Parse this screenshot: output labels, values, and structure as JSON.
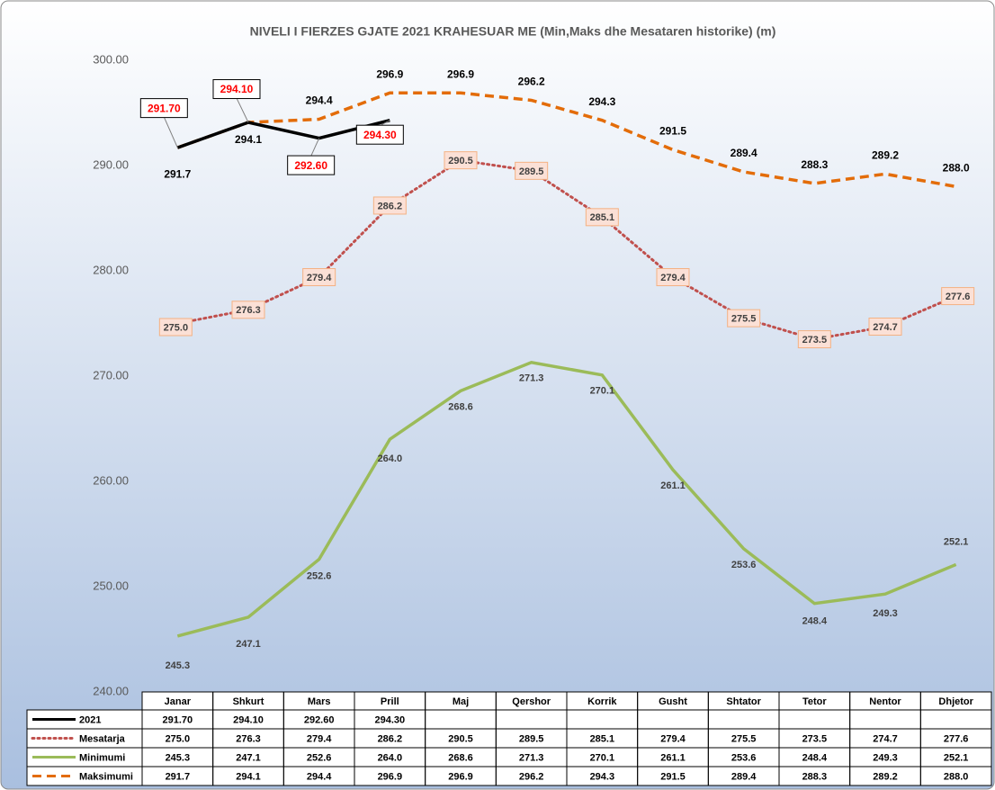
{
  "chart_data": {
    "type": "line",
    "title": "NIVELI I FIERZES GJATE 2021 KRAHESUAR ME (Min,Maks dhe Mesataren historike) (m)",
    "categories": [
      "Janar",
      "Shkurt",
      "Mars",
      "Prill",
      "Maj",
      "Qershor",
      "Korrik",
      "Gusht",
      "Shtator",
      "Tetor",
      "Nentor",
      "Dhjetor"
    ],
    "ylim": [
      240,
      300
    ],
    "yticks": [
      {
        "value": 240,
        "label": "240.00"
      },
      {
        "value": 250,
        "label": "250.00"
      },
      {
        "value": 260,
        "label": "260.00"
      },
      {
        "value": 270,
        "label": "270.00"
      },
      {
        "value": 280,
        "label": "280.00"
      },
      {
        "value": 290,
        "label": "290.00"
      },
      {
        "value": 300,
        "label": "300.00"
      }
    ],
    "grid": false,
    "series": [
      {
        "name": "2021",
        "color": "#000000",
        "style": "solid",
        "values": [
          291.7,
          294.1,
          292.6,
          294.3,
          null,
          null,
          null,
          null,
          null,
          null,
          null,
          null
        ],
        "value_labels": [
          "291.70",
          "294.10",
          "292.60",
          "294.30",
          null,
          null,
          null,
          null,
          null,
          null,
          null,
          null
        ]
      },
      {
        "name": "Mesatarja",
        "color": "#c0504d",
        "style": "dotted",
        "values": [
          275.0,
          276.3,
          279.4,
          286.2,
          290.5,
          289.5,
          285.1,
          279.4,
          275.5,
          273.5,
          274.7,
          277.6
        ],
        "value_labels": [
          "275.0",
          "276.3",
          "279.4",
          "286.2",
          "290.5",
          "289.5",
          "285.1",
          "279.4",
          "275.5",
          "273.5",
          "274.7",
          "277.6"
        ]
      },
      {
        "name": "Minimumi",
        "color": "#9bbb59",
        "style": "solid",
        "values": [
          245.3,
          247.1,
          252.6,
          264.0,
          268.6,
          271.3,
          270.1,
          261.1,
          253.6,
          248.4,
          249.3,
          252.1
        ],
        "value_labels": [
          "245.3",
          "247.1",
          "252.6",
          "264.0",
          "268.6",
          "271.3",
          "270.1",
          "261.1",
          "253.6",
          "248.4",
          "249.3",
          "252.1"
        ]
      },
      {
        "name": "Maksimumi",
        "color": "#e36c09",
        "style": "dashed",
        "values": [
          291.7,
          294.1,
          294.4,
          296.9,
          296.9,
          296.2,
          294.3,
          291.5,
          289.4,
          288.3,
          289.2,
          288.0
        ],
        "value_labels": [
          "291.7",
          "294.1",
          "294.4",
          "296.9",
          "296.9",
          "296.2",
          "294.3",
          "291.5",
          "289.4",
          "288.3",
          "289.2",
          "288.0"
        ]
      }
    ]
  }
}
